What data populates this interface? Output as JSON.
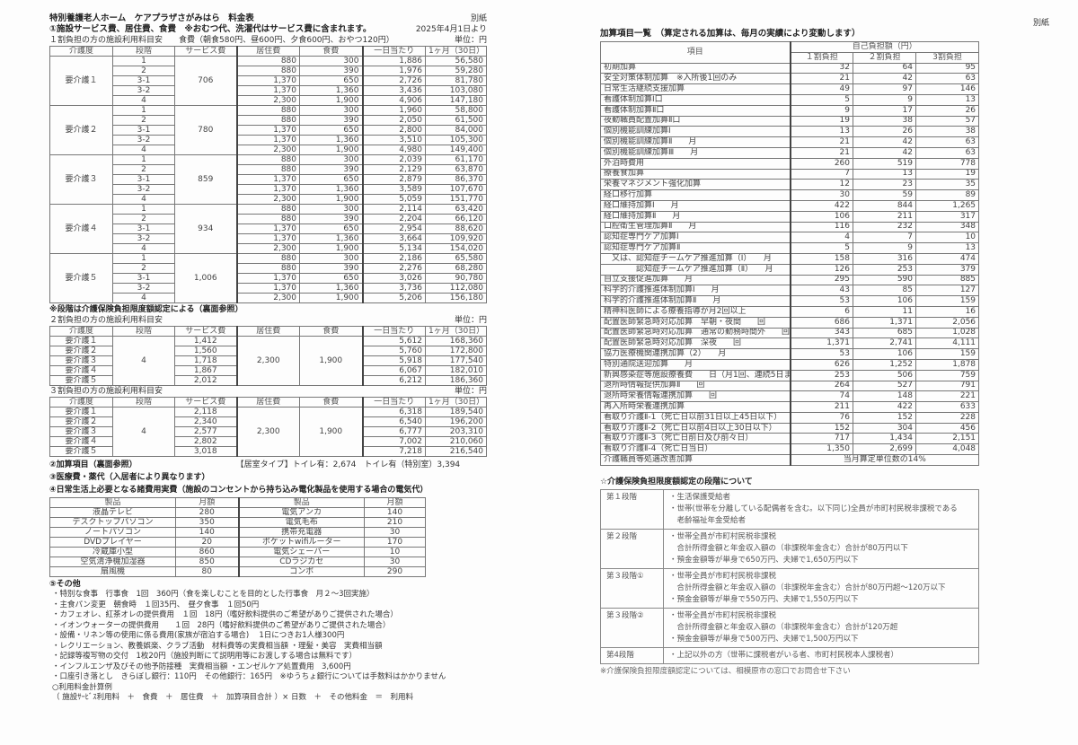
{
  "left": {
    "title": "特別養護老人ホーム　ケアプラザさがみはら　料金表",
    "attachment": "別紙",
    "section1": "①施設サービス費、居住費、食費　※おむつ代、洗濯代はサービス費に含まれます。",
    "effective_date": "2025年4月1日より",
    "caption1": "１割負担の方の施設利用料目安　　食費（朝食580円、昼600円、夕食600円、おやつ120円）",
    "unit": "単位：円",
    "headers": [
      "介護度",
      "段階",
      "サービス費",
      "居住費",
      "食費",
      "一日当たり",
      "1ヶ月（30日）"
    ],
    "table1": [
      {
        "level": "要介護１",
        "service": "706",
        "rows": [
          [
            "1",
            "880",
            "300",
            "1,886",
            "56,580"
          ],
          [
            "2",
            "880",
            "390",
            "1,976",
            "59,280"
          ],
          [
            "3-1",
            "1,370",
            "650",
            "2,726",
            "81,780"
          ],
          [
            "3-2",
            "1,370",
            "1,360",
            "3,436",
            "103,080"
          ],
          [
            "4",
            "2,300",
            "1,900",
            "4,906",
            "147,180"
          ]
        ]
      },
      {
        "level": "要介護２",
        "service": "780",
        "rows": [
          [
            "1",
            "880",
            "300",
            "1,960",
            "58,800"
          ],
          [
            "2",
            "880",
            "390",
            "2,050",
            "61,500"
          ],
          [
            "3-1",
            "1,370",
            "650",
            "2,800",
            "84,000"
          ],
          [
            "3-2",
            "1,370",
            "1,360",
            "3,510",
            "105,300"
          ],
          [
            "4",
            "2,300",
            "1,900",
            "4,980",
            "149,400"
          ]
        ]
      },
      {
        "level": "要介護３",
        "service": "859",
        "rows": [
          [
            "1",
            "880",
            "300",
            "2,039",
            "61,170"
          ],
          [
            "2",
            "880",
            "390",
            "2,129",
            "63,870"
          ],
          [
            "3-1",
            "1,370",
            "650",
            "2,879",
            "86,370"
          ],
          [
            "3-2",
            "1,370",
            "1,360",
            "3,589",
            "107,670"
          ],
          [
            "4",
            "2,300",
            "1,900",
            "5,059",
            "151,770"
          ]
        ]
      },
      {
        "level": "要介護４",
        "service": "934",
        "rows": [
          [
            "1",
            "880",
            "300",
            "2,114",
            "63,420"
          ],
          [
            "2",
            "880",
            "390",
            "2,204",
            "66,120"
          ],
          [
            "3-1",
            "1,370",
            "650",
            "2,954",
            "88,620"
          ],
          [
            "3-2",
            "1,370",
            "1,360",
            "3,664",
            "109,920"
          ],
          [
            "4",
            "2,300",
            "1,900",
            "5,134",
            "154,020"
          ]
        ]
      },
      {
        "level": "要介護５",
        "service": "1,006",
        "rows": [
          [
            "1",
            "880",
            "300",
            "2,186",
            "65,580"
          ],
          [
            "2",
            "880",
            "390",
            "2,276",
            "68,280"
          ],
          [
            "3-1",
            "1,370",
            "650",
            "3,026",
            "90,780"
          ],
          [
            "3-2",
            "1,370",
            "1,360",
            "3,736",
            "112,080"
          ],
          [
            "4",
            "2,300",
            "1,900",
            "5,206",
            "156,180"
          ]
        ]
      }
    ],
    "note_stage": "※段階は介護保険負担限度額認定による（裏面参照）",
    "caption2": "２割負担の方の施設利用料目安",
    "table2": {
      "stage": "4",
      "residence": "2,300",
      "food": "1,900",
      "rows": [
        [
          "要介護１",
          "1,412",
          "5,612",
          "168,360"
        ],
        [
          "要介護２",
          "1,560",
          "5,760",
          "172,800"
        ],
        [
          "要介護３",
          "1,718",
          "5,918",
          "177,540"
        ],
        [
          "要介護４",
          "1,867",
          "6,067",
          "182,010"
        ],
        [
          "要介護５",
          "2,012",
          "6,212",
          "186,360"
        ]
      ]
    },
    "caption3": "３割負担の方の施設利用料目安",
    "table3": {
      "stage": "4",
      "residence": "2,300",
      "food": "1,900",
      "rows": [
        [
          "要介護１",
          "2,118",
          "6,318",
          "189,540"
        ],
        [
          "要介護２",
          "2,340",
          "6,540",
          "196,200"
        ],
        [
          "要介護３",
          "2,577",
          "6,777",
          "203,310"
        ],
        [
          "要介護４",
          "2,802",
          "7,002",
          "210,060"
        ],
        [
          "要介護５",
          "3,018",
          "7,218",
          "216,540"
        ]
      ]
    },
    "section2": "②加算項目（裏面参照）",
    "room_type": "【居室タイプ】トイレ有：2,674　トイレ有（特別室）3,394",
    "section3": "③医療費・薬代（入居者により異なります）",
    "section4": "④日常生活上必要となる諸費用実費（施設のコンセントから持ち込み電化製品を使用する場合の電気代）",
    "table4_headers": [
      "製品",
      "月額",
      "製品",
      "月額"
    ],
    "table4": [
      [
        "液晶テレビ",
        "280",
        "電気アンカ",
        "140"
      ],
      [
        "デスクトップパソコン",
        "350",
        "電気毛布",
        "210"
      ],
      [
        "ノートパソコン",
        "140",
        "携帯充電器",
        "30"
      ],
      [
        "DVDプレイヤー",
        "20",
        "ポケットwifiルーター",
        "170"
      ],
      [
        "冷蔵庫小型",
        "860",
        "電気シェーバー",
        "10"
      ],
      [
        "空気清浄機加湿器",
        "850",
        "CDラジカセ",
        "30"
      ],
      [
        "扇風機",
        "80",
        "コンポ",
        "290"
      ]
    ],
    "section5": "⑤その他",
    "others": [
      "・特別な食事　行事食　1回　360円（食を楽しむことを目的とした行事食　月２～3回実施）",
      "・主食パン変更　朝食時　１回35円、　昼夕食事　１回50円",
      "・カフェオレ、紅茶オレの提供費用　１回　18円（嗜好飲料提供のご希望がありご提供された場合）",
      "・イオンウォーターの提供費用　　１回　28円（嗜好飲料提供のご希望がありご提供された場合）",
      "・設備・リネン等の使用に係る費用(家族が宿泊する場合)　 1日につきお1人様300円",
      "・レクリエーション、教養娯楽、クラブ活動　材料費等の実費相当額 ・理髪・美容　実費相当額",
      "・記録等複写物の交付　1枚20円（施設判断にて説明用等にお渡しする場合は無料です）",
      "・インフルエンザ及びその他予防接種　実費相当額 ・エンゼルケア処置費用　3,600円",
      "・口座引き落とし　きらぼし銀行：110円　その他銀行：165円　※ゆうちょ銀行については手数料はかかりません"
    ],
    "calc_title": "○利用料金計算例",
    "calc_formula": "（ 施設ｻｰﾋﾞｽ利用料　＋　食費　＋　居住費　＋　加算項目合計 ）× 日数　＋　その他料金　＝　利用料"
  },
  "right": {
    "attachment": "別紙",
    "heading": "加算項目一覧　（算定される加算は、毎月の実績により変動します）",
    "col_item": "項目",
    "col_group": "自己負担額（円）",
    "cols": [
      "１割負担",
      "２割負担",
      "3割負担"
    ],
    "items": [
      [
        "初期加算",
        "32",
        "64",
        "95"
      ],
      [
        "安全対策体制加算　※入所後1回のみ",
        "21",
        "42",
        "63"
      ],
      [
        "日常生活継続支援加算",
        "49",
        "97",
        "146"
      ],
      [
        "看護体制加算Ⅰ口",
        "5",
        "9",
        "13"
      ],
      [
        "看護体制加算Ⅱ口",
        "9",
        "17",
        "26"
      ],
      [
        "夜勤職員配置加算Ⅱ口",
        "19",
        "38",
        "57"
      ],
      [
        "個別機能訓練加算Ⅰ",
        "13",
        "26",
        "38"
      ],
      [
        "個別機能訓練加算Ⅱ　　月",
        "21",
        "42",
        "63"
      ],
      [
        "個別機能訓練加算Ⅲ　　月",
        "21",
        "42",
        "63"
      ],
      [
        "外泊時費用",
        "260",
        "519",
        "778"
      ],
      [
        "療養食加算",
        "7",
        "13",
        "19"
      ],
      [
        "栄養マネジメント強化加算",
        "12",
        "23",
        "35"
      ],
      [
        "経口移行加算",
        "30",
        "59",
        "89"
      ],
      [
        "経口維持加算Ⅰ　　月",
        "422",
        "844",
        "1,265"
      ],
      [
        "経口維持加算Ⅱ　　月",
        "106",
        "211",
        "317"
      ],
      [
        "口腔衛生管理加算Ⅱ　　月",
        "116",
        "232",
        "348"
      ],
      [
        "認知症専門ケア加算Ⅰ",
        "4",
        "7",
        "10"
      ],
      [
        "認知症専門ケア加算Ⅱ",
        "5",
        "9",
        "13"
      ],
      [
        "　又は、認知症チームケア推進加算（Ⅰ）　　月",
        "158",
        "316",
        "474"
      ],
      [
        "　　　　認知症チームケア推進加算（Ⅱ）　　月",
        "126",
        "253",
        "379"
      ],
      [
        "自立支援促進加算　　月",
        "295",
        "590",
        "885"
      ],
      [
        "科学的介護推進体制加算Ⅰ　　月",
        "43",
        "85",
        "127"
      ],
      [
        "科学的介護推進体制加算Ⅱ　　月",
        "53",
        "106",
        "159"
      ],
      [
        "精神科医師による療養指導が月2回以上",
        "6",
        "11",
        "16"
      ],
      [
        "配置医師緊急時対応加算　早朝・夜間　　回",
        "686",
        "1,371",
        "2,056"
      ],
      [
        "配置医師緊急時対応加算　通常の勤務時間外　　回",
        "343",
        "685",
        "1,028"
      ],
      [
        "配置医師緊急時対応加算　深夜　　回",
        "1,371",
        "2,741",
        "4,111"
      ],
      [
        "協力医療機関連携加算（2）　　月",
        "53",
        "106",
        "159"
      ],
      [
        "特別通院送迎加算　　月",
        "626",
        "1,252",
        "1,878"
      ],
      [
        "新興感染症等施設療養費　　日（月1回、連続5日まで）",
        "253",
        "506",
        "759"
      ],
      [
        "退所時情報提供加算Ⅱ　　回",
        "264",
        "527",
        "791"
      ],
      [
        "退所時栄養情報連携加算　　回",
        "74",
        "148",
        "221"
      ],
      [
        "再入所時栄養連携加算",
        "211",
        "422",
        "633"
      ],
      [
        "看取り介護Ⅱ-1（死亡日以前31日以上45日以下）",
        "76",
        "152",
        "228"
      ],
      [
        "看取り介護Ⅱ-2（死亡日以前4日以上30日以下）",
        "152",
        "304",
        "456"
      ],
      [
        "看取り介護Ⅱ-3（死亡日前日及び前々日）",
        "717",
        "1,434",
        "2,151"
      ],
      [
        "看取り介護Ⅱ-4（死亡日当日）",
        "1,350",
        "2,699",
        "4,048"
      ]
    ],
    "improvement_item": "介護職員等処遇改善加算",
    "improvement_value": "当月算定単位数の14%",
    "stage_heading": "☆介護保険負担限度額認定の段階について",
    "stages": [
      {
        "name": "第１段階",
        "lines": [
          "・生活保護受給者",
          "・世帯(世帯を分離している配偶者を含む。以下同じ)全員が市町村民税非課税である",
          "　老齢福祉年金受給者"
        ]
      },
      {
        "name": "第２段階",
        "lines": [
          "・世帯全員が市町村民税非課税",
          "　合計所得金額と年金収入額の（非課税年金含む）合計が80万円以下",
          "・預金金額等が単身で650万円、夫婦で1,650万円以下"
        ]
      },
      {
        "name": "第３段階①",
        "lines": [
          "・世帯全員が市町村民税非課税",
          "　合計所得金額と年金収入額の（非課税年金含む）合計が80万円超～120万以下",
          "・預金金額等が単身で550万円、夫婦で1,550万円以下"
        ]
      },
      {
        "name": "第３段階②",
        "lines": [
          "・世帯全員が市町村民税非課税",
          "　合計所得金額と年金収入額の（非課税年金含む）合計が120万超",
          "・預金金額等が単身で500万円、夫婦で1,500万円以下"
        ]
      },
      {
        "name": "第4段階",
        "lines": [
          "・上記以外の方（世帯に課税者がいる者、市町村民税本人課税者）"
        ]
      }
    ],
    "stage_note": "※介護保険負担限度額認定については、相模原市の窓口でお問合せ下さい"
  }
}
